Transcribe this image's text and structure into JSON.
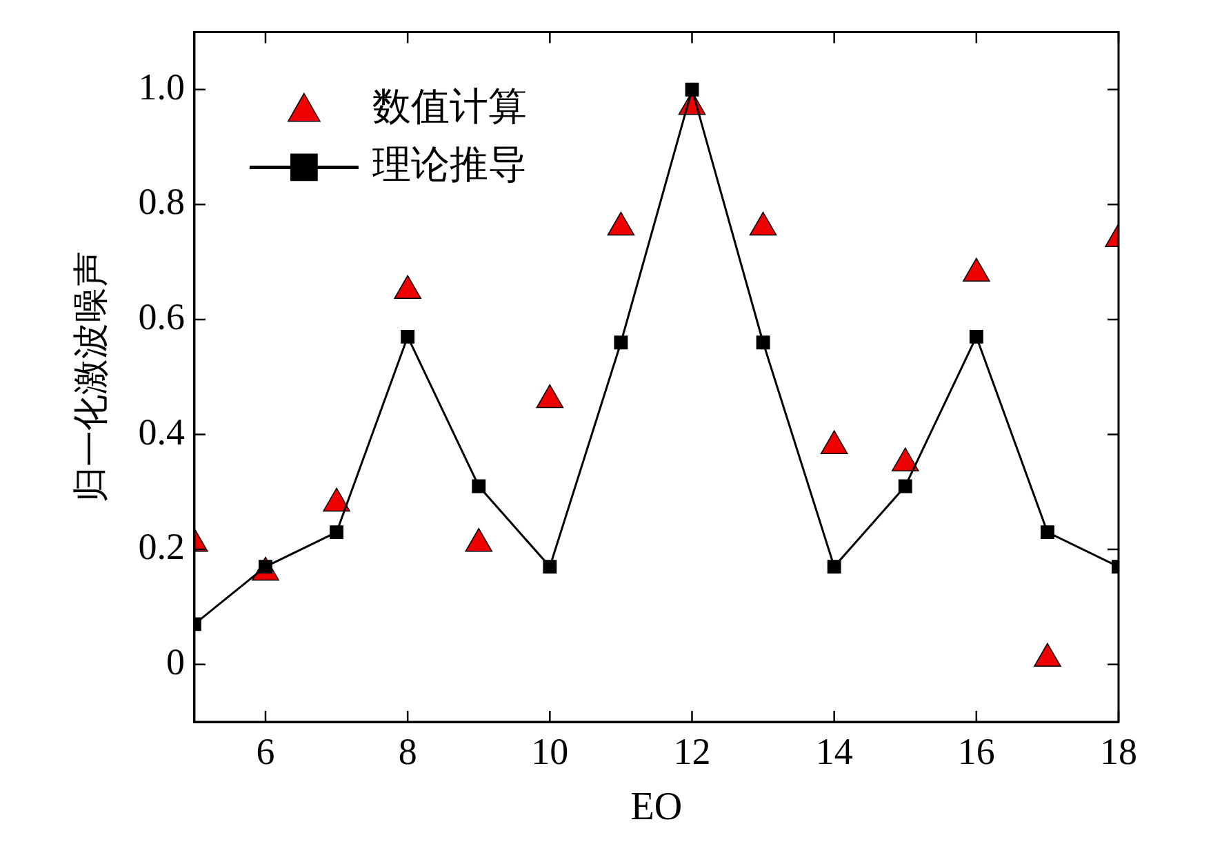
{
  "chart_data": {
    "type": "line",
    "xlabel": "EO",
    "ylabel": "归一化激波噪声",
    "x": [
      5,
      6,
      7,
      8,
      9,
      10,
      11,
      12,
      13,
      14,
      15,
      16,
      17,
      18
    ],
    "series": [
      {
        "name": "数值计算",
        "type": "scatter",
        "color": "#ee0000",
        "marker": "triangle",
        "values": [
          0.21,
          0.16,
          0.28,
          0.65,
          0.21,
          0.46,
          0.76,
          0.97,
          0.76,
          0.38,
          0.35,
          0.68,
          0.01,
          0.74
        ]
      },
      {
        "name": "理论推导",
        "type": "line",
        "color": "#000000",
        "marker": "square",
        "line_style": "solid",
        "values": [
          0.07,
          0.17,
          0.23,
          0.57,
          0.31,
          0.17,
          0.56,
          1.0,
          0.56,
          0.17,
          0.31,
          0.57,
          0.23,
          0.17
        ]
      }
    ],
    "xlim": [
      5,
      18
    ],
    "xticks": [
      6,
      8,
      10,
      12,
      14,
      16,
      18
    ],
    "ylim": [
      -0.1,
      1.1
    ],
    "yticks": [
      {
        "value": 0,
        "label": "0"
      },
      0.2,
      0.4,
      0.6,
      {
        "value": 0.8,
        "label": "0.8"
      },
      {
        "value": 1.0,
        "label": "1.0"
      }
    ],
    "grid": false,
    "legend": "top left"
  }
}
